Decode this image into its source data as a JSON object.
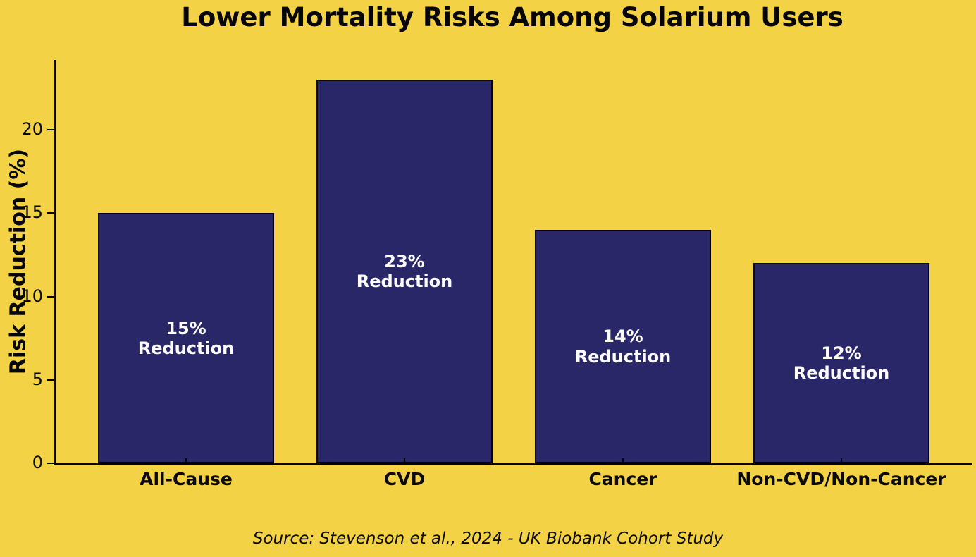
{
  "source": "Source: Stevenson et al., 2024 - UK Biobank Cohort Study",
  "colors": {
    "background": "#F4D245",
    "bar": "#292768",
    "bar_border": "#000000",
    "axis": "#000000",
    "text": "#0a0a0a",
    "bar_label_text": "#FFFFFF"
  },
  "chart_data": {
    "type": "bar",
    "title": "Lower Mortality Risks Among Solarium Users",
    "categories": [
      "All-Cause",
      "CVD",
      "Cancer",
      "Non-CVD/Non-Cancer"
    ],
    "values": [
      15,
      23,
      14,
      12
    ],
    "bar_labels": [
      "15%\nReduction",
      "23%\nReduction",
      "14%\nReduction",
      "12%\nReduction"
    ],
    "xlabel": "",
    "ylabel": "Risk Reduction (%)",
    "yticks": [
      0,
      5,
      10,
      15,
      20
    ],
    "ylim": [
      0,
      24.2
    ],
    "grid": false,
    "legend_position": "none"
  }
}
